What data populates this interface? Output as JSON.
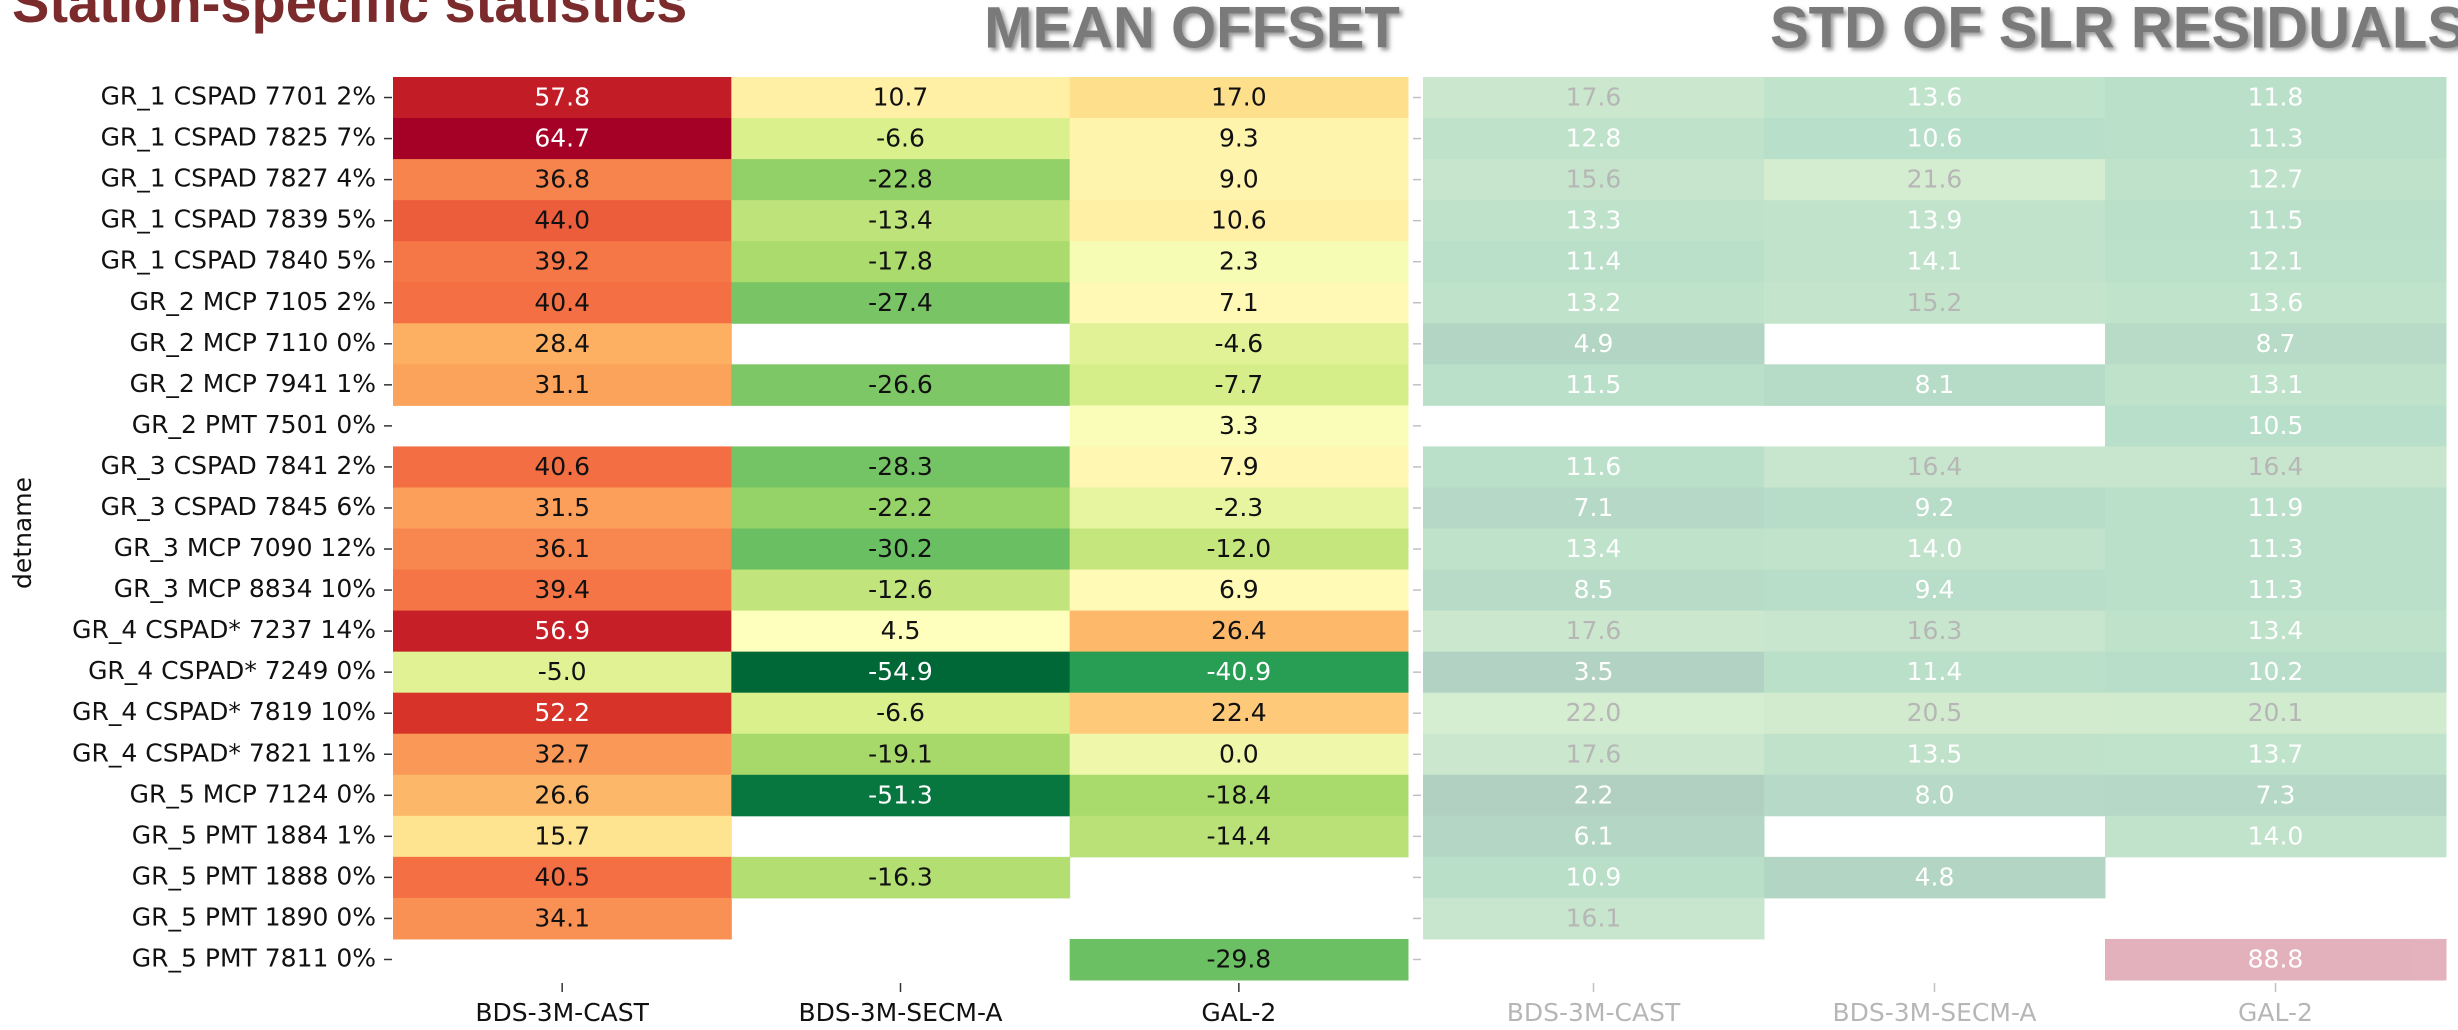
{
  "header": {
    "title": "Station-specific statistics"
  },
  "chart_data": [
    {
      "type": "heatmap",
      "title": "MEAN OFFSET",
      "y_label": "detname",
      "colormap": "RdYlGn_r",
      "rows": [
        "GR_1 CSPAD 7701 2%",
        "GR_1 CSPAD 7825 7%",
        "GR_1 CSPAD 7827 4%",
        "GR_1 CSPAD 7839 5%",
        "GR_1 CSPAD 7840 5%",
        "GR_2 MCP 7105 2%",
        "GR_2 MCP 7110 0%",
        "GR_2 MCP 7941 1%",
        "GR_2 PMT 7501 0%",
        "GR_3 CSPAD 7841 2%",
        "GR_3 CSPAD 7845 6%",
        "GR_3 MCP 7090 12%",
        "GR_3 MCP 8834 10%",
        "GR_4 CSPAD* 7237 14%",
        "GR_4 CSPAD* 7249 0%",
        "GR_4 CSPAD* 7819 10%",
        "GR_4 CSPAD* 7821 11%",
        "GR_5 MCP 7124 0%",
        "GR_5 PMT 1884 1%",
        "GR_5 PMT 1888 0%",
        "GR_5 PMT 1890 0%",
        "GR_5 PMT 7811 0%"
      ],
      "columns": [
        "BDS-3M-CAST",
        "BDS-3M-SECM-A",
        "GAL-2"
      ],
      "values": [
        [
          57.8,
          10.7,
          17.0
        ],
        [
          64.7,
          -6.6,
          9.3
        ],
        [
          36.8,
          -22.8,
          9.0
        ],
        [
          44.0,
          -13.4,
          10.6
        ],
        [
          39.2,
          -17.8,
          2.3
        ],
        [
          40.4,
          -27.4,
          7.1
        ],
        [
          28.4,
          null,
          -4.6
        ],
        [
          31.1,
          -26.6,
          -7.7
        ],
        [
          null,
          null,
          3.3
        ],
        [
          40.6,
          -28.3,
          7.9
        ],
        [
          31.5,
          -22.2,
          -2.3
        ],
        [
          36.1,
          -30.2,
          -12.0
        ],
        [
          39.4,
          -12.6,
          6.9
        ],
        [
          56.9,
          4.5,
          26.4
        ],
        [
          -5.0,
          -54.9,
          -40.9
        ],
        [
          52.2,
          -6.6,
          22.4
        ],
        [
          32.7,
          -19.1,
          0.0
        ],
        [
          26.6,
          -51.3,
          -18.4
        ],
        [
          15.7,
          null,
          -14.4
        ],
        [
          40.5,
          -16.3,
          null
        ],
        [
          34.1,
          null,
          null
        ],
        [
          null,
          null,
          -29.8
        ]
      ],
      "value_labels": [
        [
          "57.8",
          "10.7",
          "17.0"
        ],
        [
          "64.7",
          "-6.6",
          "9.3"
        ],
        [
          "36.8",
          "-22.8",
          "9.0"
        ],
        [
          "44.0",
          "-13.4",
          "10.6"
        ],
        [
          "39.2",
          "-17.8",
          "2.3"
        ],
        [
          "40.4",
          "-27.4",
          "7.1"
        ],
        [
          "28.4",
          null,
          "-4.6"
        ],
        [
          "31.1",
          "-26.6",
          "-7.7"
        ],
        [
          null,
          null,
          "3.3"
        ],
        [
          "40.6",
          "-28.3",
          "7.9"
        ],
        [
          "31.5",
          "-22.2",
          "-2.3"
        ],
        [
          "36.1",
          "-30.2",
          "-12.0"
        ],
        [
          "39.4",
          "-12.6",
          "6.9"
        ],
        [
          "56.9",
          "4.5",
          "26.4"
        ],
        [
          "-5.0",
          "-54.9",
          "-40.9"
        ],
        [
          "52.2",
          "-6.6",
          "22.4"
        ],
        [
          "32.7",
          "-19.1",
          "0.0"
        ],
        [
          "26.6",
          "-51.3",
          "-18.4"
        ],
        [
          "15.7",
          null,
          "-14.4"
        ],
        [
          "40.5",
          "-16.3",
          null
        ],
        [
          "34.1",
          null,
          null
        ],
        [
          null,
          null,
          "-29.8"
        ]
      ]
    },
    {
      "type": "heatmap",
      "title": "STD OF SLR RESIDUALS",
      "colormap": "RdYlGn_r",
      "columns": [
        "BDS-3M-CAST",
        "BDS-3M-SECM-A",
        "GAL-2"
      ],
      "values": [
        [
          17.6,
          13.6,
          11.8
        ],
        [
          12.8,
          10.6,
          11.3
        ],
        [
          15.6,
          21.6,
          12.7
        ],
        [
          13.3,
          13.9,
          11.5
        ],
        [
          11.4,
          14.1,
          12.1
        ],
        [
          13.2,
          15.2,
          13.6
        ],
        [
          4.9,
          null,
          8.7
        ],
        [
          11.5,
          8.1,
          13.1
        ],
        [
          null,
          null,
          10.5
        ],
        [
          11.6,
          16.4,
          16.4
        ],
        [
          7.1,
          9.2,
          11.9
        ],
        [
          13.4,
          14.0,
          11.3
        ],
        [
          8.5,
          9.4,
          11.3
        ],
        [
          17.6,
          16.3,
          13.4
        ],
        [
          3.5,
          11.4,
          10.2
        ],
        [
          22.0,
          20.5,
          20.1
        ],
        [
          17.6,
          13.5,
          13.7
        ],
        [
          2.2,
          8.0,
          7.3
        ],
        [
          6.1,
          null,
          14.0
        ],
        [
          10.9,
          4.8,
          null
        ],
        [
          16.1,
          null,
          null
        ],
        [
          null,
          null,
          88.8
        ]
      ],
      "value_labels": [
        [
          "17.6",
          "13.6",
          "11.8"
        ],
        [
          "12.8",
          "10.6",
          "11.3"
        ],
        [
          "15.6",
          "21.6",
          "12.7"
        ],
        [
          "13.3",
          "13.9",
          "11.5"
        ],
        [
          "11.4",
          "14.1",
          "12.1"
        ],
        [
          "13.2",
          "15.2",
          "13.6"
        ],
        [
          "4.9",
          null,
          "8.7"
        ],
        [
          "11.5",
          "8.1",
          "13.1"
        ],
        [
          null,
          null,
          "10.5"
        ],
        [
          "11.6",
          "16.4",
          "16.4"
        ],
        [
          "7.1",
          "9.2",
          "11.9"
        ],
        [
          "13.4",
          "14.0",
          "11.3"
        ],
        [
          "8.5",
          "9.4",
          "11.3"
        ],
        [
          "17.6",
          "16.3",
          "13.4"
        ],
        [
          "3.5",
          "11.4",
          "10.2"
        ],
        [
          "22.0",
          "20.5",
          "20.1"
        ],
        [
          "17.6",
          "13.5",
          "13.7"
        ],
        [
          "2.2",
          "8.0",
          "7.3"
        ],
        [
          "6.1",
          null,
          "14.0"
        ],
        [
          "10.9",
          "4.8",
          null
        ],
        [
          "16.1",
          null,
          null
        ],
        [
          null,
          null,
          "88.8"
        ]
      ]
    }
  ]
}
